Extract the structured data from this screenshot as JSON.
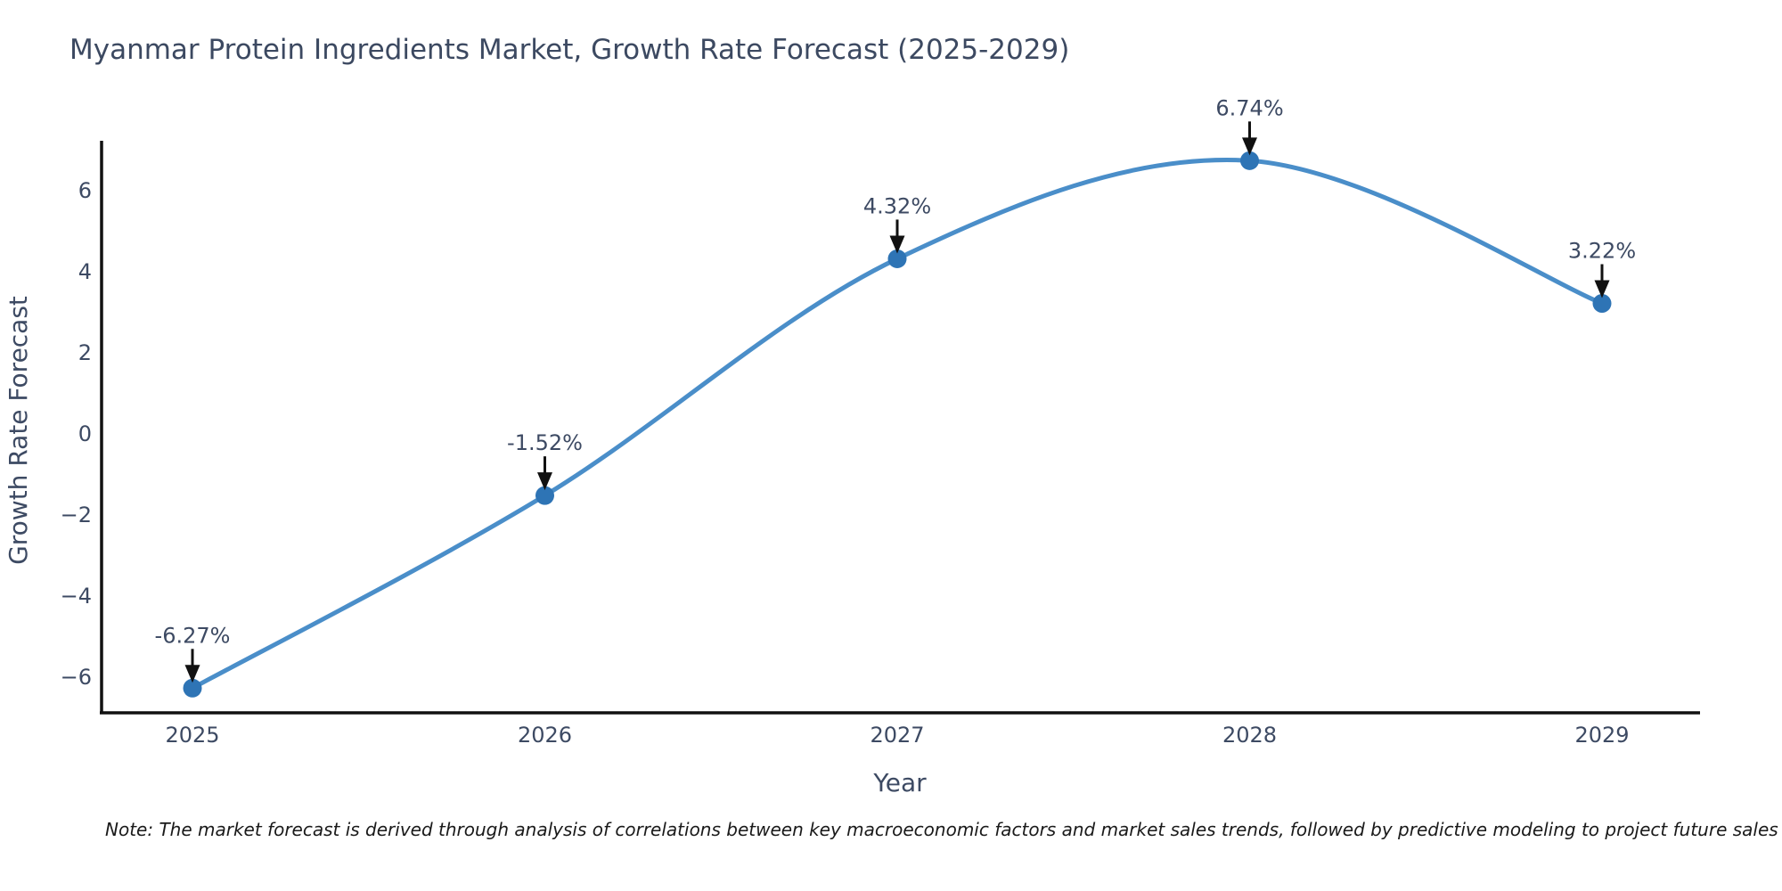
{
  "title": "Myanmar Protein Ingredients Market, Growth Rate Forecast (2025-2029)",
  "note": "Note: The market forecast is derived through analysis of correlations between key macroeconomic factors and market sales trends, followed by predictive modeling to project future sales",
  "chart_data": {
    "type": "line",
    "title": "Myanmar Protein Ingredients Market, Growth Rate Forecast (2025-2029)",
    "xlabel": "Year",
    "ylabel": "Growth Rate Forecast",
    "categories": [
      "2025",
      "2026",
      "2027",
      "2028",
      "2029"
    ],
    "values": [
      -6.27,
      -1.52,
      4.32,
      6.74,
      3.22
    ],
    "point_labels": [
      "-6.27%",
      "-1.52%",
      "4.32%",
      "6.74%",
      "3.22%"
    ],
    "ytick_values": [
      6,
      4,
      2,
      0,
      -2,
      -4,
      -6
    ],
    "ytick_labels": [
      "6",
      "4",
      "2",
      "0",
      "−2",
      "−4",
      "−6"
    ],
    "ylim": [
      -6.9,
      7.2
    ],
    "grid": false,
    "legend": false,
    "line_color": "#4a8ec9",
    "marker_color": "#2e74b5",
    "arrow_color": "#111111",
    "axis_color": "#111111",
    "text_color": "#3d4a63"
  }
}
